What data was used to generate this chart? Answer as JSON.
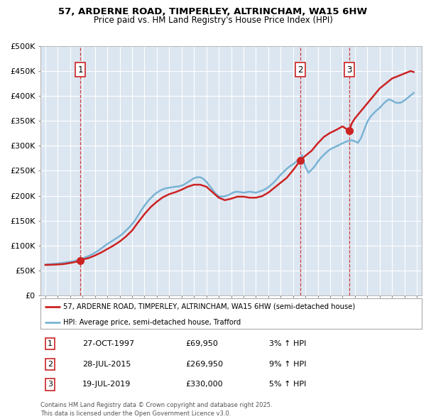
{
  "title_line1": "57, ARDERNE ROAD, TIMPERLEY, ALTRINCHAM, WA15 6HW",
  "title_line2": "Price paid vs. HM Land Registry's House Price Index (HPI)",
  "plot_bg_color": "#dce6f1",
  "ylim": [
    0,
    500000
  ],
  "yticks": [
    0,
    50000,
    100000,
    150000,
    200000,
    250000,
    300000,
    350000,
    400000,
    450000,
    500000
  ],
  "hpi_color": "#7ab3d4",
  "price_color": "#cc2222",
  "transactions": [
    {
      "date_idx": 1997.82,
      "price": 69950,
      "label": "1"
    },
    {
      "date_idx": 2015.57,
      "price": 269950,
      "label": "2"
    },
    {
      "date_idx": 2019.54,
      "price": 330000,
      "label": "3"
    }
  ],
  "legend_line1": "57, ARDERNE ROAD, TIMPERLEY, ALTRINCHAM, WA15 6HW (semi-detached house)",
  "legend_line2": "HPI: Average price, semi-detached house, Trafford",
  "table_rows": [
    {
      "num": "1",
      "date": "27-OCT-1997",
      "price": "£69,950",
      "change": "3% ↑ HPI"
    },
    {
      "num": "2",
      "date": "28-JUL-2015",
      "price": "£269,950",
      "change": "9% ↑ HPI"
    },
    {
      "num": "3",
      "date": "19-JUL-2019",
      "price": "£330,000",
      "change": "5% ↑ HPI"
    }
  ],
  "footnote": "Contains HM Land Registry data © Crown copyright and database right 2025.\nThis data is licensed under the Open Government Licence v3.0.",
  "hpi_data": {
    "years": [
      1995,
      1995.25,
      1995.5,
      1995.75,
      1996,
      1996.25,
      1996.5,
      1996.75,
      1997,
      1997.25,
      1997.5,
      1997.75,
      1998,
      1998.25,
      1998.5,
      1998.75,
      1999,
      1999.25,
      1999.5,
      1999.75,
      2000,
      2000.25,
      2000.5,
      2000.75,
      2001,
      2001.25,
      2001.5,
      2001.75,
      2002,
      2002.25,
      2002.5,
      2002.75,
      2003,
      2003.25,
      2003.5,
      2003.75,
      2004,
      2004.25,
      2004.5,
      2004.75,
      2005,
      2005.25,
      2005.5,
      2005.75,
      2006,
      2006.25,
      2006.5,
      2006.75,
      2007,
      2007.25,
      2007.5,
      2007.75,
      2008,
      2008.25,
      2008.5,
      2008.75,
      2009,
      2009.25,
      2009.5,
      2009.75,
      2010,
      2010.25,
      2010.5,
      2010.75,
      2011,
      2011.25,
      2011.5,
      2011.75,
      2012,
      2012.25,
      2012.5,
      2012.75,
      2013,
      2013.25,
      2013.5,
      2013.75,
      2014,
      2014.25,
      2014.5,
      2014.75,
      2015,
      2015.25,
      2015.5,
      2015.75,
      2016,
      2016.25,
      2016.5,
      2016.75,
      2017,
      2017.25,
      2017.5,
      2017.75,
      2018,
      2018.25,
      2018.5,
      2018.75,
      2019,
      2019.25,
      2019.5,
      2019.75,
      2020,
      2020.25,
      2020.5,
      2020.75,
      2021,
      2021.25,
      2021.5,
      2021.75,
      2022,
      2022.25,
      2022.5,
      2022.75,
      2023,
      2023.25,
      2023.5,
      2023.75,
      2024,
      2024.25,
      2024.5,
      2024.75
    ],
    "values": [
      62000,
      62500,
      63000,
      63500,
      64000,
      64800,
      65500,
      66500,
      67500,
      68500,
      70000,
      72000,
      74000,
      76500,
      79000,
      82000,
      85500,
      89500,
      94000,
      98500,
      103000,
      107000,
      111000,
      115000,
      119000,
      124000,
      130000,
      136000,
      143000,
      151000,
      161000,
      171000,
      180000,
      188000,
      195000,
      201000,
      206000,
      210000,
      213000,
      215000,
      216000,
      217000,
      218000,
      218500,
      220000,
      223000,
      227000,
      231000,
      235000,
      237000,
      237000,
      234000,
      228000,
      220000,
      212000,
      204000,
      199000,
      198000,
      199000,
      201000,
      204000,
      207000,
      208000,
      207000,
      206000,
      207000,
      208000,
      207000,
      206000,
      208000,
      210000,
      213000,
      217000,
      222000,
      228000,
      235000,
      242000,
      248000,
      254000,
      259000,
      263000,
      268000,
      274000,
      281000,
      258000,
      246000,
      252000,
      259000,
      268000,
      276000,
      282000,
      288000,
      293000,
      296000,
      299000,
      302000,
      305000,
      308000,
      310000,
      311000,
      309000,
      306000,
      316000,
      332000,
      348000,
      358000,
      365000,
      371000,
      376000,
      383000,
      389000,
      393000,
      391000,
      387000,
      386000,
      387000,
      391000,
      396000,
      401000,
      406000
    ]
  },
  "price_line_data": {
    "years": [
      1995,
      1995.5,
      1996,
      1996.5,
      1997,
      1997.5,
      1997.82,
      1998,
      1998.5,
      1999,
      1999.5,
      2000,
      2000.5,
      2001,
      2001.5,
      2002,
      2002.5,
      2003,
      2003.5,
      2004,
      2004.5,
      2005,
      2005.5,
      2006,
      2006.5,
      2007,
      2007.5,
      2008,
      2008.5,
      2009,
      2009.5,
      2010,
      2010.5,
      2011,
      2011.5,
      2012,
      2012.5,
      2013,
      2013.5,
      2014,
      2014.5,
      2015,
      2015.57,
      2016,
      2016.5,
      2017,
      2017.5,
      2018,
      2018.5,
      2019,
      2019.54,
      2019.75,
      2020,
      2020.5,
      2021,
      2021.5,
      2022,
      2022.25,
      2022.5,
      2022.75,
      2023,
      2023.5,
      2024,
      2024.5,
      2024.75
    ],
    "values": [
      61000,
      61500,
      62000,
      63000,
      65000,
      67500,
      69950,
      72000,
      75000,
      80000,
      86000,
      93000,
      100000,
      108000,
      118000,
      130000,
      147000,
      163000,
      177000,
      188000,
      197000,
      203000,
      207000,
      212000,
      218000,
      222000,
      222000,
      218000,
      207000,
      196000,
      191000,
      194000,
      198000,
      198000,
      196000,
      196000,
      199000,
      206000,
      216000,
      226000,
      236000,
      251000,
      269950,
      280000,
      290000,
      305000,
      318000,
      326000,
      332000,
      339000,
      330000,
      345000,
      355000,
      370000,
      385000,
      400000,
      415000,
      420000,
      425000,
      430000,
      435000,
      440000,
      445000,
      450000,
      448000
    ]
  }
}
